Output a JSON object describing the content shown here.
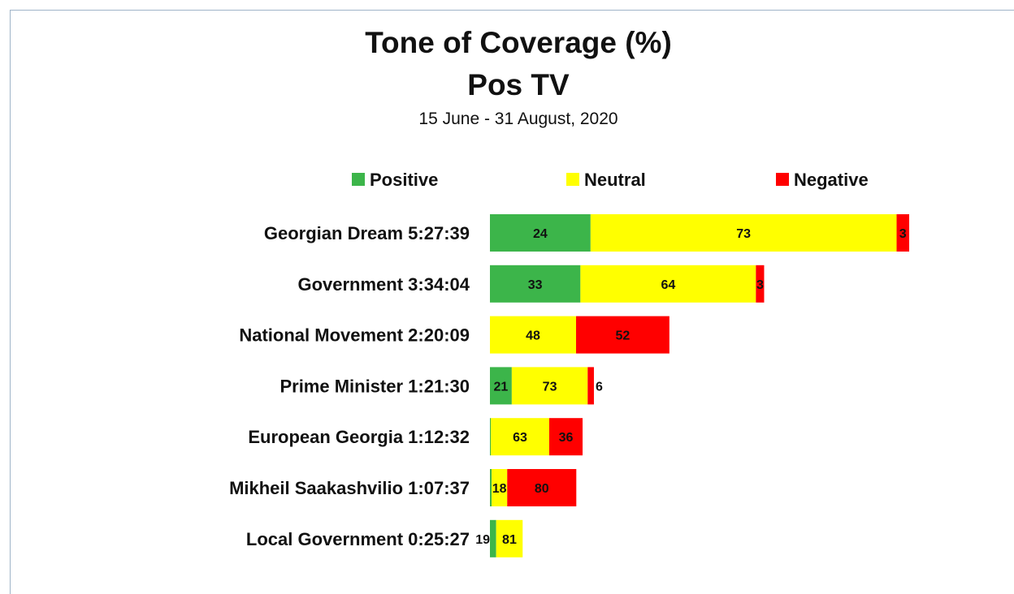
{
  "chart_data": {
    "type": "bar",
    "orientation": "horizontal",
    "stacked": true,
    "title": "Tone of Coverage (%)",
    "subtitle": "Pos TV",
    "date_range": "15 June - 31 August, 2020",
    "legend_position": "top",
    "categories": [
      "Georgian Dream 5:27:39",
      "Government 3:34:04",
      "National Movement 2:20:09",
      "Prime Minister 1:21:30",
      "European Georgia 1:12:32",
      "Mikheil Saakashvilio 1:07:37",
      "Local Government 0:25:27"
    ],
    "bar_scale": [
      1.0,
      0.654,
      0.428,
      0.248,
      0.221,
      0.206,
      0.078
    ],
    "series": [
      {
        "name": "Positive",
        "color": "#3cb54a",
        "values": [
          24,
          33,
          0,
          21,
          1,
          2,
          19
        ]
      },
      {
        "name": "Neutral",
        "color": "#ffff00",
        "values": [
          73,
          64,
          48,
          73,
          63,
          18,
          81
        ]
      },
      {
        "name": "Negative",
        "color": "#ff0000",
        "values": [
          3,
          3,
          52,
          6,
          36,
          80,
          0
        ]
      }
    ],
    "data_labels": [
      [
        "24",
        "73",
        "3"
      ],
      [
        "33",
        "64",
        "3"
      ],
      [
        "",
        "48",
        "52"
      ],
      [
        "21",
        "73",
        "6"
      ],
      [
        "",
        "63",
        "36"
      ],
      [
        "",
        "18",
        "80"
      ],
      [
        "19",
        "81",
        ""
      ]
    ],
    "grid": false
  }
}
